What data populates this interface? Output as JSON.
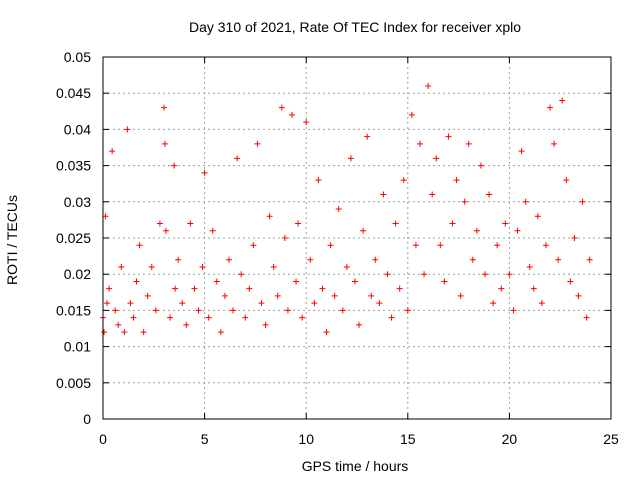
{
  "chart_data": {
    "type": "scatter",
    "title": "Day 310 of 2021, Rate Of TEC Index for receiver xplo",
    "xlabel": "GPS time / hours",
    "ylabel": "ROTI / TECUs",
    "xlim": [
      0,
      25
    ],
    "ylim": [
      0,
      0.05
    ],
    "x_ticks": [
      0,
      5,
      10,
      15,
      20,
      25
    ],
    "x_tick_labels": [
      "0",
      "5",
      "10",
      "15",
      "20",
      "25"
    ],
    "y_ticks": [
      0,
      0.005,
      0.01,
      0.015,
      0.02,
      0.025,
      0.03,
      0.035,
      0.04,
      0.045,
      0.05
    ],
    "y_tick_labels": [
      "0",
      "0.005",
      "0.01",
      "0.015",
      "0.02",
      "0.025",
      "0.03",
      "0.035",
      "0.04",
      "0.045",
      "0.05"
    ],
    "grid": true,
    "marker": "+",
    "color": "#ff0000",
    "series": [
      {
        "x": [
          0.0,
          0.05,
          0.12,
          0.2,
          0.3,
          0.45,
          0.6,
          0.75,
          0.9,
          1.05,
          1.2,
          1.35,
          1.5,
          1.65,
          1.8,
          2.0,
          2.2,
          2.4,
          2.6,
          2.8,
          3.0,
          3.05,
          3.1,
          3.3,
          3.5,
          3.55,
          3.7,
          3.9,
          4.1,
          4.3,
          4.5,
          4.7,
          4.9,
          5.0,
          5.2,
          5.4,
          5.6,
          5.8,
          6.0,
          6.2,
          6.4,
          6.6,
          6.8,
          7.0,
          7.2,
          7.4,
          7.6,
          7.8,
          8.0,
          8.2,
          8.4,
          8.6,
          8.8,
          8.95,
          9.1,
          9.3,
          9.5,
          9.6,
          9.8,
          10.0,
          10.2,
          10.4,
          10.6,
          10.8,
          11.0,
          11.2,
          11.4,
          11.6,
          11.8,
          12.0,
          12.2,
          12.4,
          12.6,
          12.8,
          13.0,
          13.2,
          13.4,
          13.6,
          13.8,
          14.0,
          14.2,
          14.4,
          14.6,
          14.8,
          15.0,
          15.2,
          15.4,
          15.6,
          15.8,
          16.0,
          16.2,
          16.4,
          16.6,
          16.8,
          17.0,
          17.2,
          17.4,
          17.6,
          17.8,
          18.0,
          18.2,
          18.4,
          18.6,
          18.8,
          19.0,
          19.2,
          19.4,
          19.6,
          19.8,
          20.0,
          20.2,
          20.4,
          20.6,
          20.8,
          21.0,
          21.2,
          21.4,
          21.6,
          21.8,
          22.0,
          22.2,
          22.4,
          22.6,
          22.8,
          23.0,
          23.2,
          23.4,
          23.6,
          23.8,
          23.95
        ],
        "y": [
          0.014,
          0.012,
          0.028,
          0.016,
          0.018,
          0.037,
          0.015,
          0.013,
          0.021,
          0.012,
          0.04,
          0.016,
          0.014,
          0.019,
          0.024,
          0.012,
          0.017,
          0.021,
          0.015,
          0.027,
          0.043,
          0.038,
          0.026,
          0.014,
          0.035,
          0.018,
          0.022,
          0.016,
          0.013,
          0.027,
          0.018,
          0.015,
          0.021,
          0.034,
          0.014,
          0.026,
          0.019,
          0.012,
          0.017,
          0.022,
          0.015,
          0.036,
          0.02,
          0.014,
          0.018,
          0.024,
          0.038,
          0.016,
          0.013,
          0.028,
          0.021,
          0.017,
          0.043,
          0.025,
          0.015,
          0.042,
          0.019,
          0.027,
          0.014,
          0.041,
          0.022,
          0.016,
          0.033,
          0.018,
          0.012,
          0.024,
          0.017,
          0.029,
          0.015,
          0.021,
          0.036,
          0.019,
          0.013,
          0.026,
          0.039,
          0.017,
          0.022,
          0.016,
          0.031,
          0.02,
          0.014,
          0.027,
          0.018,
          0.033,
          0.015,
          0.042,
          0.024,
          0.038,
          0.02,
          0.046,
          0.031,
          0.036,
          0.024,
          0.019,
          0.039,
          0.027,
          0.033,
          0.017,
          0.03,
          0.038,
          0.022,
          0.026,
          0.035,
          0.02,
          0.031,
          0.016,
          0.024,
          0.018,
          0.027,
          0.02,
          0.015,
          0.026,
          0.037,
          0.03,
          0.021,
          0.018,
          0.028,
          0.016,
          0.024,
          0.043,
          0.038,
          0.022,
          0.044,
          0.033,
          0.019,
          0.025,
          0.017,
          0.03,
          0.014,
          0.022
        ]
      }
    ]
  }
}
